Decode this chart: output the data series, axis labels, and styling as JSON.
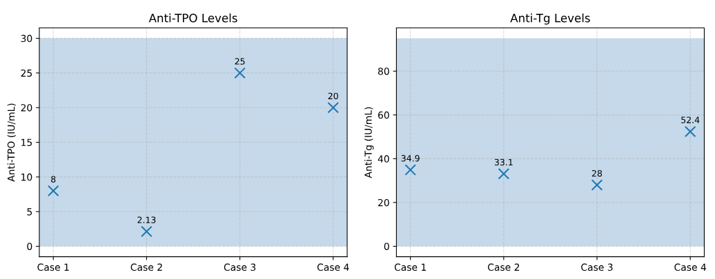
{
  "chart_data": [
    {
      "type": "scatter",
      "title": "Anti-TPO Levels",
      "ylabel": "Anti-TPO (IU/mL)",
      "categories": [
        "Case 1",
        "Case 2",
        "Case 3",
        "Case 4"
      ],
      "series": [
        {
          "color": "#1f77b4",
          "values": [
            8,
            2.13,
            25,
            20
          ]
        }
      ],
      "marker": "cross",
      "data_labels": true,
      "grid": true,
      "ylim": [
        -1.5,
        31.5
      ],
      "yticks": [
        0,
        5,
        10,
        15,
        20,
        25,
        30
      ],
      "bands": [
        {
          "axis": "y",
          "from": 0,
          "to": 30,
          "color": "#c5d9ea"
        }
      ]
    },
    {
      "type": "scatter",
      "title": "Anti-Tg Levels",
      "ylabel": "Anti-Tg (IU/mL)",
      "categories": [
        "Case 1",
        "Case 2",
        "Case 3",
        "Case 4"
      ],
      "series": [
        {
          "color": "#1f77b4",
          "values": [
            34.9,
            33.1,
            28,
            52.4
          ]
        }
      ],
      "marker": "cross",
      "data_labels": true,
      "grid": true,
      "ylim": [
        -4.75,
        99.75
      ],
      "yticks": [
        0,
        20,
        40,
        60,
        80
      ],
      "bands": [
        {
          "axis": "y",
          "from": 0,
          "to": 95,
          "color": "#c5d9ea"
        }
      ]
    }
  ]
}
